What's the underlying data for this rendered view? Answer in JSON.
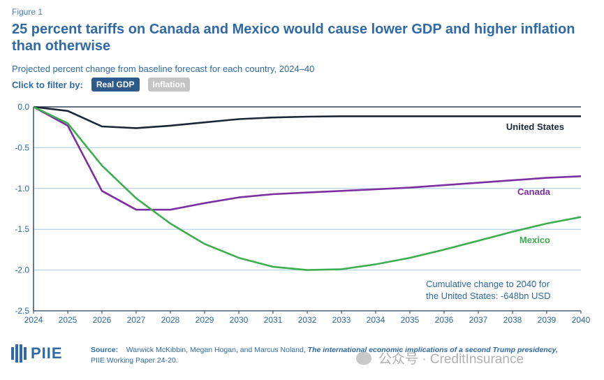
{
  "figure_label": "Figure 1",
  "title": "25 percent tariffs on Canada and Mexico would cause lower GDP and higher inflation than otherwise",
  "subtitle": "Projected percent change from baseline forecast for each country, 2024–40",
  "filter": {
    "label": "Click to filter by:",
    "options": [
      "Real GDP",
      "Inflation"
    ],
    "selected": "Real GDP"
  },
  "chart_data": {
    "type": "line",
    "x": [
      2024,
      2025,
      2026,
      2027,
      2028,
      2029,
      2030,
      2031,
      2032,
      2033,
      2034,
      2035,
      2036,
      2037,
      2038,
      2039,
      2040
    ],
    "ylim": [
      -2.5,
      0.0
    ],
    "yticks": [
      "0.0",
      "-0.5",
      "-1.0",
      "-1.5",
      "-2.0",
      "-2.5"
    ],
    "xticks": [
      "2024",
      "2025",
      "2026",
      "2027",
      "2028",
      "2029",
      "2030",
      "2031",
      "2032",
      "2033",
      "2034",
      "2035",
      "2036",
      "2037",
      "2038",
      "2039",
      "2040"
    ],
    "grid": true,
    "series": [
      {
        "name": "United States",
        "color": "#1b2738",
        "values": [
          0.0,
          -0.05,
          -0.24,
          -0.26,
          -0.23,
          -0.19,
          -0.15,
          -0.13,
          -0.12,
          -0.115,
          -0.115,
          -0.115,
          -0.115,
          -0.115,
          -0.115,
          -0.115,
          -0.115
        ]
      },
      {
        "name": "Canada",
        "color": "#7b2fa0",
        "values": [
          0.0,
          -0.23,
          -1.03,
          -1.26,
          -1.26,
          -1.18,
          -1.11,
          -1.07,
          -1.05,
          -1.03,
          -1.01,
          -0.99,
          -0.96,
          -0.93,
          -0.9,
          -0.87,
          -0.85
        ]
      },
      {
        "name": "Mexico",
        "color": "#3dae4f",
        "values": [
          0.0,
          -0.2,
          -0.72,
          -1.12,
          -1.43,
          -1.68,
          -1.85,
          -1.96,
          -2.0,
          -1.99,
          -1.93,
          -1.85,
          -1.75,
          -1.64,
          -1.53,
          -1.43,
          -1.35
        ]
      }
    ],
    "annotation": {
      "line1": "Cumulative change to 2040 for",
      "line2": "the United States: -648bn USD"
    }
  },
  "footer": {
    "logo_text": "PIIE",
    "source_label": "Source:",
    "source_authors": "Warwick McKibbin, Megan Hogan, and Marcus Noland,",
    "source_title": "The international economic implications of a second Trump presidency,",
    "source_suffix": "PIIE Working Paper 24-20.",
    "watermark": "公众号 · CreditInsurance"
  }
}
